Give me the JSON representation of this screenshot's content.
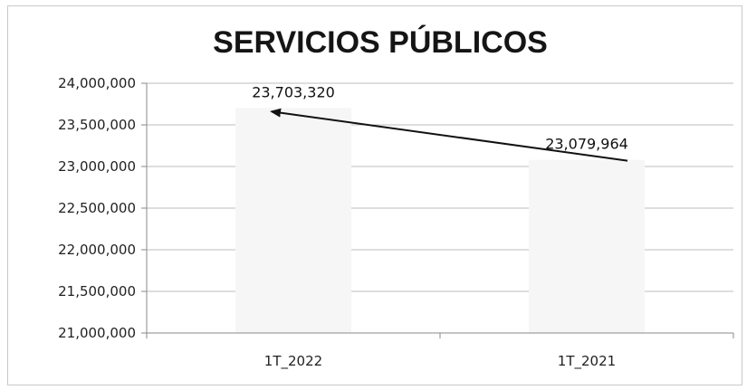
{
  "chart_data": {
    "type": "bar",
    "title": "SERVICIOS PÚBLICOS",
    "xlabel": "",
    "ylabel": "",
    "categories": [
      "1T_2022",
      "1T_2021"
    ],
    "values": [
      23703320,
      23079964
    ],
    "data_labels": [
      "23,703,320",
      "23,079,964"
    ],
    "ylim": [
      21000000,
      24000000
    ],
    "yticks": [
      21000000,
      21500000,
      22000000,
      22500000,
      23000000,
      23500000,
      24000000
    ],
    "ytick_labels": [
      "21,000,000",
      "21,500,000",
      "22,000,000",
      "22,500,000",
      "23,000,000",
      "23,500,000",
      "24,000,000"
    ],
    "grid": true,
    "legend": "none",
    "annotation": "arrow from 1T_2021 value to 1T_2022 value",
    "colors": {
      "bar_fill": "#f6f6f6",
      "gridline": "#bdbdbd",
      "axis": "#8a8a8a",
      "arrow": "#111111",
      "frame": "#c9c9c9"
    }
  }
}
